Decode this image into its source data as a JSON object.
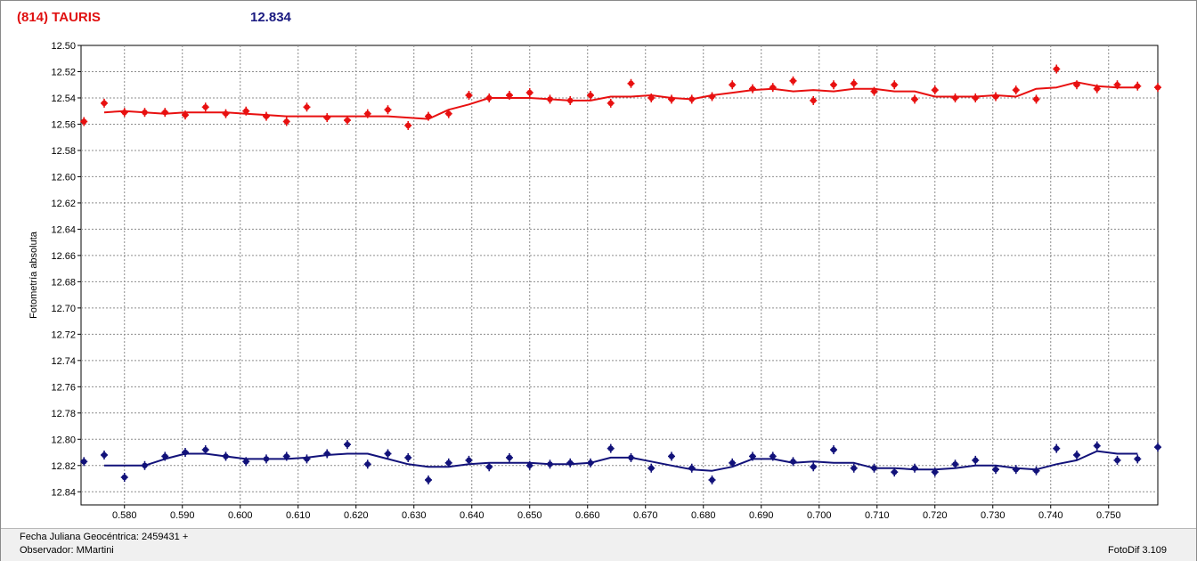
{
  "header": {
    "object_name": "(814) TAURIS",
    "magnitude": "12.834"
  },
  "footer": {
    "fecha": "Fecha Juliana Geocéntrica: 2459431 +",
    "observador": "Observador: MMartini",
    "version": "FotoDif 3.109"
  },
  "colors": {
    "red_series": "#e81010",
    "blue_series": "#12127a",
    "grid": "#8c8c8c"
  },
  "chart_data": {
    "type": "scatter",
    "title": "",
    "xlabel": "",
    "ylabel": "Fotometría absoluta",
    "xlim": [
      0.5725,
      0.7585
    ],
    "ylim": [
      12.5,
      12.85
    ],
    "y_inverted": true,
    "xticks": [
      "0.580",
      "0.590",
      "0.600",
      "0.610",
      "0.620",
      "0.630",
      "0.640",
      "0.650",
      "0.660",
      "0.670",
      "0.680",
      "0.690",
      "0.700",
      "0.710",
      "0.720",
      "0.730",
      "0.740",
      "0.750"
    ],
    "yticks": [
      "12.50",
      "12.52",
      "12.54",
      "12.56",
      "12.58",
      "12.60",
      "12.62",
      "12.64",
      "12.66",
      "12.68",
      "12.70",
      "12.72",
      "12.74",
      "12.76",
      "12.78",
      "12.80",
      "12.82",
      "12.84"
    ],
    "grid": true,
    "series": [
      {
        "color": "#e81010",
        "x": [
          0.573,
          0.5765,
          0.58,
          0.5835,
          0.587,
          0.5905,
          0.594,
          0.5975,
          0.601,
          0.6045,
          0.608,
          0.6115,
          0.615,
          0.6185,
          0.622,
          0.6255,
          0.629,
          0.6325,
          0.636,
          0.6395,
          0.643,
          0.6465,
          0.65,
          0.6535,
          0.657,
          0.6605,
          0.664,
          0.6675,
          0.671,
          0.6745,
          0.678,
          0.6815,
          0.685,
          0.6885,
          0.692,
          0.6955,
          0.699,
          0.7025,
          0.706,
          0.7095,
          0.713,
          0.7165,
          0.72,
          0.7235,
          0.727,
          0.7305,
          0.734,
          0.7375,
          0.741,
          0.7445,
          0.748,
          0.7515,
          0.755,
          0.7585
        ],
        "y": [
          12.558,
          12.544,
          12.551,
          12.551,
          12.551,
          12.553,
          12.547,
          12.552,
          12.55,
          12.554,
          12.558,
          12.547,
          12.555,
          12.557,
          12.552,
          12.549,
          12.561,
          12.554,
          12.552,
          12.538,
          12.54,
          12.538,
          12.536,
          12.541,
          12.542,
          12.538,
          12.544,
          12.529,
          12.54,
          12.541,
          12.541,
          12.539,
          12.53,
          12.533,
          12.532,
          12.527,
          12.542,
          12.53,
          12.529,
          12.535,
          12.53,
          12.541,
          12.534,
          12.54,
          12.54,
          12.539,
          12.534,
          12.541,
          12.518,
          12.53,
          12.533,
          12.53,
          12.531,
          12.532
        ],
        "trend_x": [
          0.5765,
          0.58,
          0.5835,
          0.587,
          0.5905,
          0.594,
          0.5975,
          0.601,
          0.6045,
          0.608,
          0.6115,
          0.615,
          0.6185,
          0.622,
          0.6255,
          0.629,
          0.6325,
          0.636,
          0.6395,
          0.643,
          0.6465,
          0.65,
          0.6535,
          0.657,
          0.6605,
          0.664,
          0.6675,
          0.671,
          0.6745,
          0.678,
          0.6815,
          0.685,
          0.6885,
          0.692,
          0.6955,
          0.699,
          0.7025,
          0.706,
          0.7095,
          0.713,
          0.7165,
          0.72,
          0.7235,
          0.727,
          0.7305,
          0.734,
          0.7375,
          0.741,
          0.7445,
          0.748,
          0.7515,
          0.755
        ],
        "trend_y": [
          12.551,
          12.55,
          12.551,
          12.552,
          12.551,
          12.551,
          12.551,
          12.552,
          12.553,
          12.554,
          12.554,
          12.554,
          12.554,
          12.554,
          12.554,
          12.555,
          12.556,
          12.549,
          12.545,
          12.54,
          12.54,
          12.54,
          12.541,
          12.542,
          12.542,
          12.539,
          12.539,
          12.538,
          12.54,
          12.541,
          12.538,
          12.536,
          12.534,
          12.533,
          12.535,
          12.534,
          12.535,
          12.533,
          12.533,
          12.535,
          12.535,
          12.539,
          12.539,
          12.539,
          12.538,
          12.539,
          12.533,
          12.532,
          12.528,
          12.531,
          12.532,
          12.532
        ]
      },
      {
        "color": "#12127a",
        "x": [
          0.573,
          0.5765,
          0.58,
          0.5835,
          0.587,
          0.5905,
          0.594,
          0.5975,
          0.601,
          0.6045,
          0.608,
          0.6115,
          0.615,
          0.6185,
          0.622,
          0.6255,
          0.629,
          0.6325,
          0.636,
          0.6395,
          0.643,
          0.6465,
          0.65,
          0.6535,
          0.657,
          0.6605,
          0.664,
          0.6675,
          0.671,
          0.6745,
          0.678,
          0.6815,
          0.685,
          0.6885,
          0.692,
          0.6955,
          0.699,
          0.7025,
          0.706,
          0.7095,
          0.713,
          0.7165,
          0.72,
          0.7235,
          0.727,
          0.7305,
          0.734,
          0.7375,
          0.741,
          0.7445,
          0.748,
          0.7515,
          0.755,
          0.7585
        ],
        "y": [
          12.817,
          12.812,
          12.829,
          12.82,
          12.813,
          12.81,
          12.808,
          12.813,
          12.817,
          12.815,
          12.813,
          12.815,
          12.811,
          12.804,
          12.819,
          12.811,
          12.814,
          12.831,
          12.818,
          12.816,
          12.821,
          12.814,
          12.82,
          12.819,
          12.818,
          12.818,
          12.807,
          12.814,
          12.822,
          12.813,
          12.822,
          12.831,
          12.818,
          12.813,
          12.813,
          12.817,
          12.821,
          12.808,
          12.822,
          12.822,
          12.825,
          12.822,
          12.825,
          12.819,
          12.816,
          12.823,
          12.823,
          12.824,
          12.807,
          12.812,
          12.805,
          12.816,
          12.815,
          12.806
        ],
        "trend_x": [
          0.5765,
          0.58,
          0.5835,
          0.587,
          0.5905,
          0.594,
          0.5975,
          0.601,
          0.6045,
          0.608,
          0.6115,
          0.615,
          0.6185,
          0.622,
          0.6255,
          0.629,
          0.6325,
          0.636,
          0.6395,
          0.643,
          0.6465,
          0.65,
          0.6535,
          0.657,
          0.6605,
          0.664,
          0.6675,
          0.671,
          0.6745,
          0.678,
          0.6815,
          0.685,
          0.6885,
          0.692,
          0.6955,
          0.699,
          0.7025,
          0.706,
          0.7095,
          0.713,
          0.7165,
          0.72,
          0.7235,
          0.727,
          0.7305,
          0.734,
          0.7375,
          0.741,
          0.7445,
          0.748,
          0.7515,
          0.755
        ],
        "trend_y": [
          12.82,
          12.82,
          12.82,
          12.815,
          12.811,
          12.811,
          12.813,
          12.815,
          12.815,
          12.815,
          12.814,
          12.812,
          12.811,
          12.811,
          12.815,
          12.819,
          12.821,
          12.821,
          12.819,
          12.818,
          12.818,
          12.818,
          12.819,
          12.819,
          12.818,
          12.814,
          12.814,
          12.817,
          12.82,
          12.823,
          12.824,
          12.821,
          12.815,
          12.815,
          12.818,
          12.817,
          12.818,
          12.818,
          12.822,
          12.822,
          12.823,
          12.823,
          12.822,
          12.82,
          12.82,
          12.822,
          12.823,
          12.819,
          12.816,
          12.809,
          12.811,
          12.811
        ]
      }
    ]
  }
}
